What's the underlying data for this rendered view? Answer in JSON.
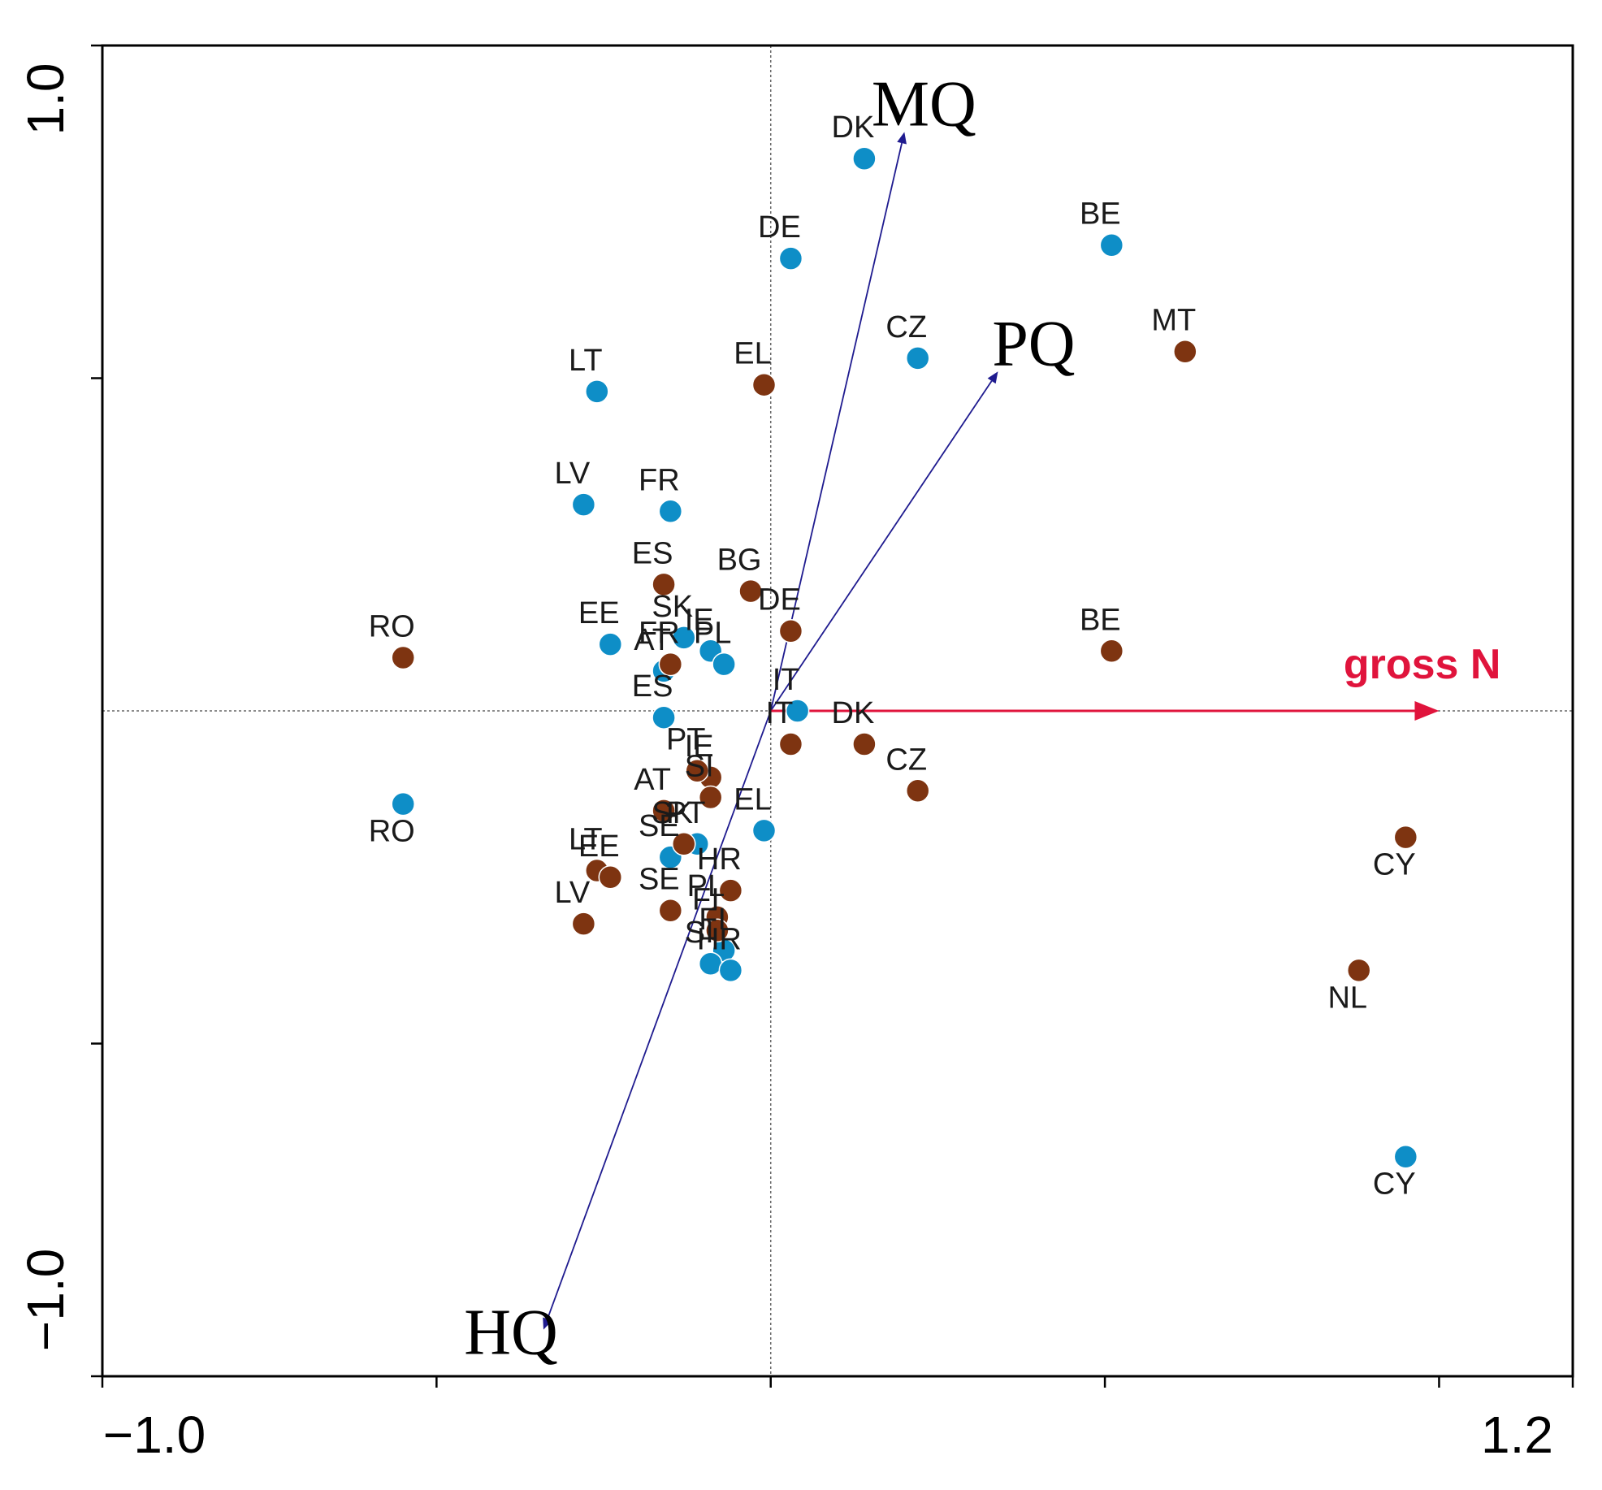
{
  "colors": {
    "group_blue": "#0e8ec7",
    "group_brown": "#7e3411",
    "vector": "#1f1b8f",
    "gross_n": "#e0143c",
    "axis": "#000000"
  },
  "chart_data": {
    "type": "scatter",
    "title": "",
    "xlabel": "",
    "ylabel": "",
    "xlim": [
      -1.0,
      1.2
    ],
    "ylim": [
      -1.0,
      1.0
    ],
    "x_tick_labels": [
      "−1.0",
      "1.2"
    ],
    "y_tick_labels": [
      "1.0",
      "−1.0"
    ],
    "minor_ticks_x": [
      -0.5,
      0.0,
      0.5,
      1.0
    ],
    "minor_ticks_y": [
      0.5,
      -0.5
    ],
    "reference_lines": {
      "x": 0.0,
      "y": 0.0
    },
    "series": [
      {
        "name": "blue",
        "color": "#0e8ec7",
        "points": [
          {
            "label": "DK",
            "x": 0.14,
            "y": 0.83
          },
          {
            "label": "DE",
            "x": 0.03,
            "y": 0.68
          },
          {
            "label": "BE",
            "x": 0.51,
            "y": 0.7
          },
          {
            "label": "CZ",
            "x": 0.22,
            "y": 0.53
          },
          {
            "label": "LT",
            "x": -0.26,
            "y": 0.48
          },
          {
            "label": "LV",
            "x": -0.28,
            "y": 0.31
          },
          {
            "label": "FR",
            "x": -0.15,
            "y": 0.3
          },
          {
            "label": "EE",
            "x": -0.24,
            "y": 0.1
          },
          {
            "label": "SK",
            "x": -0.13,
            "y": 0.11
          },
          {
            "label": "IE",
            "x": -0.09,
            "y": 0.09
          },
          {
            "label": "PL",
            "x": -0.07,
            "y": 0.07
          },
          {
            "label": "AT",
            "x": -0.16,
            "y": 0.06
          },
          {
            "label": "IT",
            "x": 0.04,
            "y": 0.0
          },
          {
            "label": "ES",
            "x": -0.16,
            "y": -0.01
          },
          {
            "label": "RO",
            "x": -0.55,
            "y": -0.14
          },
          {
            "label": "PT",
            "x": -0.11,
            "y": -0.2
          },
          {
            "label": "SE",
            "x": -0.15,
            "y": -0.22
          },
          {
            "label": "EL",
            "x": -0.01,
            "y": -0.18
          },
          {
            "label": "FI",
            "x": -0.07,
            "y": -0.36
          },
          {
            "label": "SI",
            "x": -0.09,
            "y": -0.38
          },
          {
            "label": "HR",
            "x": -0.06,
            "y": -0.39
          },
          {
            "label": "CY",
            "x": 0.95,
            "y": -0.67
          }
        ]
      },
      {
        "name": "brown",
        "color": "#7e3411",
        "points": [
          {
            "label": "MT",
            "x": 0.62,
            "y": 0.54
          },
          {
            "label": "EL",
            "x": -0.01,
            "y": 0.49
          },
          {
            "label": "ES",
            "x": -0.16,
            "y": 0.19
          },
          {
            "label": "BG",
            "x": -0.03,
            "y": 0.18
          },
          {
            "label": "DE",
            "x": 0.03,
            "y": 0.12
          },
          {
            "label": "FR",
            "x": -0.15,
            "y": 0.07
          },
          {
            "label": "RO",
            "x": -0.55,
            "y": 0.08
          },
          {
            "label": "BE",
            "x": 0.51,
            "y": 0.09
          },
          {
            "label": "IT",
            "x": 0.03,
            "y": -0.05
          },
          {
            "label": "DK",
            "x": 0.14,
            "y": -0.05
          },
          {
            "label": "IE",
            "x": -0.09,
            "y": -0.1
          },
          {
            "label": "PT",
            "x": -0.11,
            "y": -0.09
          },
          {
            "label": "SI",
            "x": -0.09,
            "y": -0.13
          },
          {
            "label": "CZ",
            "x": 0.22,
            "y": -0.12
          },
          {
            "label": "AT",
            "x": -0.16,
            "y": -0.15
          },
          {
            "label": "SK",
            "x": -0.13,
            "y": -0.2
          },
          {
            "label": "LT",
            "x": -0.26,
            "y": -0.24
          },
          {
            "label": "EE",
            "x": -0.24,
            "y": -0.25
          },
          {
            "label": "HR",
            "x": -0.06,
            "y": -0.27
          },
          {
            "label": "SE",
            "x": -0.15,
            "y": -0.3
          },
          {
            "label": "PL",
            "x": -0.08,
            "y": -0.31
          },
          {
            "label": "FI",
            "x": -0.08,
            "y": -0.33
          },
          {
            "label": "LV",
            "x": -0.28,
            "y": -0.32
          },
          {
            "label": "CY",
            "x": 0.95,
            "y": -0.19
          },
          {
            "label": "NL",
            "x": 0.88,
            "y": -0.39
          }
        ]
      }
    ],
    "vectors": [
      {
        "label": "MQ",
        "x": 0.2,
        "y": 0.87,
        "color": "#1f1b8f"
      },
      {
        "label": "PQ",
        "x": 0.34,
        "y": 0.51,
        "color": "#1f1b8f"
      },
      {
        "label": "HQ",
        "x": -0.34,
        "y": -0.93,
        "color": "#1f1b8f"
      },
      {
        "label": "gross N",
        "x": 1.0,
        "y": 0.0,
        "color": "#e0143c"
      }
    ]
  }
}
